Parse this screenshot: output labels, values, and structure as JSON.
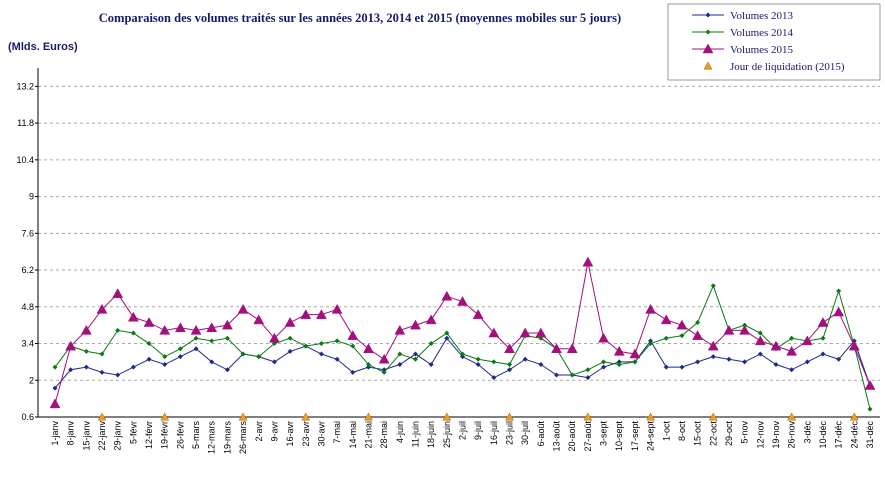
{
  "chart_data": {
    "type": "line",
    "title": "Comparaison des volumes traités sur les années 2013, 2014 et 2015 (moyennes mobiles sur 5 jours)",
    "y_label": "(Mlds. Euros)",
    "categories": [
      "1-janv",
      "8-janv",
      "15-janv",
      "22-janv",
      "29-janv",
      "5-févr",
      "12-févr",
      "19-févr",
      "26-févr",
      "5-mars",
      "12-mars",
      "19-mars",
      "26-mars",
      "2-avr",
      "9-avr",
      "16-avr",
      "23-avr",
      "30-avr",
      "7-mai",
      "14-mai",
      "21-mai",
      "28-mai",
      "4-juin",
      "11-juin",
      "18-juin",
      "25-juin",
      "2-juil",
      "9-juil",
      "16-juil",
      "23-juil",
      "30-juil",
      "6-août",
      "13-août",
      "20-août",
      "27-août",
      "3-sept",
      "10-sept",
      "17-sept",
      "24-sept",
      "1-oct",
      "8-oct",
      "15-oct",
      "22-oct",
      "29-oct",
      "5-nov",
      "12-nov",
      "19-nov",
      "26-nov",
      "3-déc",
      "10-déc",
      "17-déc",
      "24-déc",
      "31-déc"
    ],
    "series": [
      {
        "name": "Volumes 2013",
        "color": "#1f2a8a",
        "marker": "diamond",
        "line": true,
        "values": [
          1.7,
          2.4,
          2.5,
          2.3,
          2.2,
          2.5,
          2.8,
          2.6,
          2.9,
          3.2,
          2.7,
          2.4,
          3.0,
          2.9,
          2.7,
          3.1,
          3.3,
          3.0,
          2.8,
          2.3,
          2.5,
          2.4,
          2.6,
          3.0,
          2.6,
          3.6,
          2.9,
          2.6,
          2.1,
          2.4,
          2.8,
          2.6,
          2.2,
          2.2,
          2.1,
          2.5,
          2.7,
          2.7,
          3.5,
          2.5,
          2.5,
          2.7,
          2.9,
          2.8,
          2.7,
          3.0,
          2.6,
          2.4,
          2.7,
          3.0,
          2.8,
          3.5,
          1.8
        ]
      },
      {
        "name": "Volumes 2014",
        "color": "#0b7a12",
        "marker": "diamond",
        "line": true,
        "values": [
          2.5,
          3.3,
          3.1,
          3.0,
          3.9,
          3.8,
          3.4,
          2.9,
          3.2,
          3.6,
          3.5,
          3.6,
          3.0,
          2.9,
          3.4,
          3.6,
          3.3,
          3.4,
          3.5,
          3.3,
          2.6,
          2.3,
          3.0,
          2.8,
          3.4,
          3.8,
          3.0,
          2.8,
          2.7,
          2.6,
          3.7,
          3.6,
          3.2,
          2.2,
          2.4,
          2.7,
          2.6,
          2.7,
          3.4,
          3.6,
          3.7,
          4.2,
          5.6,
          3.9,
          4.1,
          3.8,
          3.2,
          3.6,
          3.5,
          3.6,
          5.4,
          3.3,
          0.9
        ]
      },
      {
        "name": "Volumes 2015",
        "color": "#a3107d",
        "marker": "triangle",
        "line": true,
        "values": [
          1.1,
          3.3,
          3.9,
          4.7,
          5.3,
          4.4,
          4.2,
          3.9,
          4.0,
          3.9,
          4.0,
          4.1,
          4.7,
          4.3,
          3.6,
          4.2,
          4.5,
          4.5,
          4.7,
          3.7,
          3.2,
          2.8,
          3.9,
          4.1,
          4.3,
          5.2,
          5.0,
          4.5,
          3.8,
          3.2,
          3.8,
          3.8,
          3.2,
          3.2,
          6.5,
          3.6,
          3.1,
          3.0,
          4.7,
          4.3,
          4.1,
          3.7,
          3.3,
          3.9,
          3.9,
          3.5,
          3.3,
          3.1,
          3.5,
          4.2,
          4.6,
          3.3,
          1.8
        ]
      },
      {
        "name": "Jour de liquidation (2015)",
        "color": "#e8a020",
        "marker": "triangle",
        "line": false,
        "values": [
          null,
          null,
          null,
          0.6,
          null,
          null,
          null,
          0.6,
          null,
          null,
          null,
          null,
          0.6,
          null,
          null,
          null,
          0.6,
          null,
          null,
          null,
          0.6,
          null,
          null,
          null,
          null,
          0.6,
          null,
          null,
          null,
          0.6,
          null,
          null,
          null,
          null,
          0.6,
          null,
          null,
          null,
          0.6,
          null,
          null,
          null,
          0.6,
          null,
          null,
          null,
          null,
          0.6,
          null,
          null,
          null,
          0.6,
          null
        ]
      }
    ],
    "ylim": [
      0.6,
      13.9
    ],
    "yticks": [
      0.6,
      2,
      3.4,
      4.8,
      6.2,
      7.6,
      9,
      10.4,
      11.8,
      13.2
    ],
    "grid": true,
    "legend": "top-right"
  }
}
